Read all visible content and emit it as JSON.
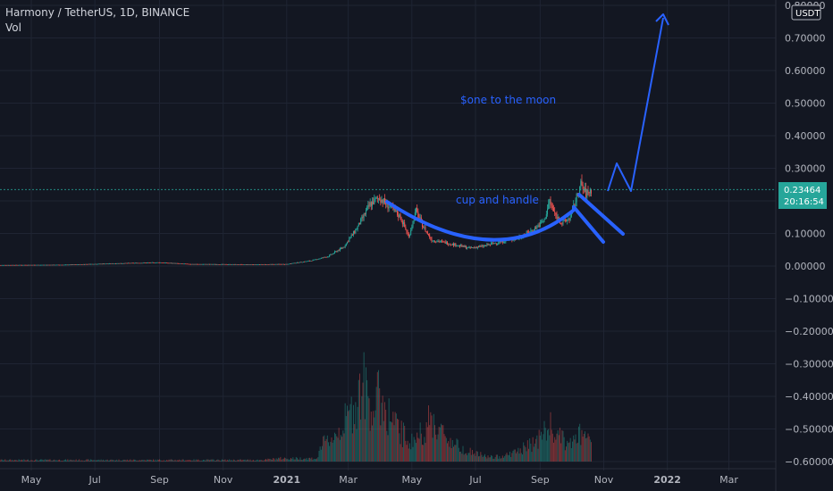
{
  "header": {
    "title": "Harmony / TetherUS, 1D, BINANCE",
    "subtitle": "Vol"
  },
  "currency_label": "USDT",
  "colors": {
    "background": "#131722",
    "grid": "#1f2433",
    "axis_text": "#b2b5be",
    "up": "#26a69a",
    "down": "#ef5350",
    "drawing": "#2962ff",
    "price_tag": "#26a69a"
  },
  "price_tag": {
    "price": "0.23464",
    "countdown": "20:16:54",
    "value": 0.23464
  },
  "annotations": [
    {
      "text": "$one to the moon"
    },
    {
      "text": "cup and handle"
    }
  ],
  "chart_data": {
    "type": "candlestick",
    "ylim": [
      -0.6,
      0.8
    ],
    "y_ticks": [
      "0.80000",
      "0.70000",
      "0.60000",
      "0.50000",
      "0.40000",
      "0.30000",
      "0.20000",
      "0.10000",
      "0.00000",
      "−0.10000",
      "−0.20000",
      "−0.30000",
      "−0.40000",
      "−0.50000",
      "−0.60000"
    ],
    "y_tick_values": [
      0.8,
      0.7,
      0.6,
      0.5,
      0.4,
      0.3,
      0.2,
      0.1,
      0.0,
      -0.1,
      -0.2,
      -0.3,
      -0.4,
      -0.5,
      -0.6
    ],
    "x_ticks": [
      "May",
      "Jul",
      "Sep",
      "Nov",
      "2021",
      "Mar",
      "May",
      "Jul",
      "Sep",
      "Nov",
      "2022",
      "Mar"
    ],
    "x_tick_dates": [
      "2020-05-01",
      "2020-07-01",
      "2020-09-01",
      "2020-11-01",
      "2021-01-01",
      "2021-03-01",
      "2021-05-01",
      "2021-07-01",
      "2021-09-01",
      "2021-11-01",
      "2022-01-01",
      "2022-03-01"
    ],
    "x_range": [
      "2020-04-01",
      "2022-04-15"
    ],
    "price_series": [
      {
        "date": "2020-04-01",
        "close": 0.003
      },
      {
        "date": "2020-06-01",
        "close": 0.004
      },
      {
        "date": "2020-08-01",
        "close": 0.009
      },
      {
        "date": "2020-09-01",
        "close": 0.011
      },
      {
        "date": "2020-10-01",
        "close": 0.006
      },
      {
        "date": "2020-12-01",
        "close": 0.005
      },
      {
        "date": "2021-01-01",
        "close": 0.006
      },
      {
        "date": "2021-01-25",
        "close": 0.017
      },
      {
        "date": "2021-02-10",
        "close": 0.03
      },
      {
        "date": "2021-02-25",
        "close": 0.06
      },
      {
        "date": "2021-03-10",
        "close": 0.12
      },
      {
        "date": "2021-03-22",
        "close": 0.19
      },
      {
        "date": "2021-03-31",
        "close": 0.21
      },
      {
        "date": "2021-04-10",
        "close": 0.18
      },
      {
        "date": "2021-04-20",
        "close": 0.15
      },
      {
        "date": "2021-04-28",
        "close": 0.09
      },
      {
        "date": "2021-05-05",
        "close": 0.17
      },
      {
        "date": "2021-05-12",
        "close": 0.12
      },
      {
        "date": "2021-05-20",
        "close": 0.08
      },
      {
        "date": "2021-06-05",
        "close": 0.07
      },
      {
        "date": "2021-06-25",
        "close": 0.055
      },
      {
        "date": "2021-07-10",
        "close": 0.062
      },
      {
        "date": "2021-07-25",
        "close": 0.075
      },
      {
        "date": "2021-08-10",
        "close": 0.085
      },
      {
        "date": "2021-08-25",
        "close": 0.11
      },
      {
        "date": "2021-09-05",
        "close": 0.14
      },
      {
        "date": "2021-09-10",
        "close": 0.2
      },
      {
        "date": "2021-09-15",
        "close": 0.16
      },
      {
        "date": "2021-09-22",
        "close": 0.13
      },
      {
        "date": "2021-09-30",
        "close": 0.15
      },
      {
        "date": "2021-10-05",
        "close": 0.2
      },
      {
        "date": "2021-10-10",
        "close": 0.25
      },
      {
        "date": "2021-10-15",
        "close": 0.22
      },
      {
        "date": "2021-10-20",
        "close": 0.235
      }
    ],
    "volume_series": [
      {
        "date": "2021-03-15",
        "volume": 1.0
      },
      {
        "date": "2021-03-31",
        "volume": 0.85
      },
      {
        "date": "2021-05-20",
        "volume": 0.55
      },
      {
        "date": "2021-09-10",
        "volume": 0.45
      },
      {
        "date": "2021-10-10",
        "volume": 0.35
      }
    ]
  }
}
